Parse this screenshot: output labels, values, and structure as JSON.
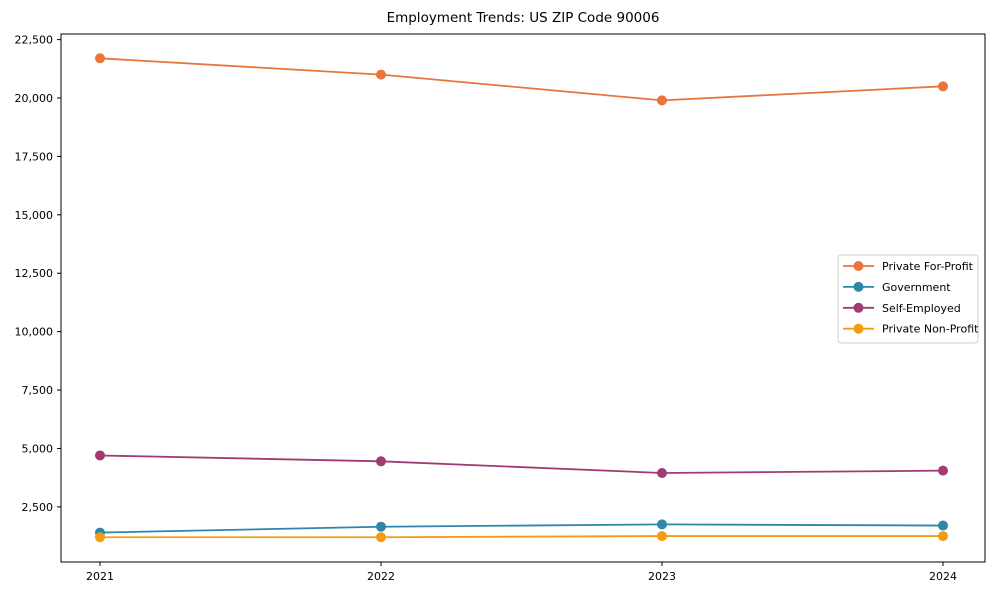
{
  "figure": {
    "background": "#ffffff"
  },
  "chart_data": {
    "type": "line",
    "title": "Employment Trends: US ZIP Code 90006",
    "categories": [
      "2021",
      "2022",
      "2023",
      "2024"
    ],
    "series": [
      {
        "name": "Private For-Profit",
        "color": "#E8763C",
        "values": [
          21700,
          21000,
          19900,
          20500
        ]
      },
      {
        "name": "Government",
        "color": "#2E86AB",
        "values": [
          1400,
          1650,
          1750,
          1700
        ]
      },
      {
        "name": "Self-Employed",
        "color": "#A23B72",
        "values": [
          4700,
          4450,
          3950,
          4050
        ]
      },
      {
        "name": "Private Non-Profit",
        "color": "#F39C12",
        "values": [
          1200,
          1200,
          1250,
          1250
        ]
      }
    ],
    "xlabel": "",
    "ylabel": "",
    "ylim": [
      140,
      22740
    ],
    "yticks": [
      2500,
      5000,
      7500,
      10000,
      12500,
      15000,
      17500,
      20000,
      22500
    ],
    "grid": false,
    "marker": "circle",
    "legend_position": "center-right",
    "axis_color": "#000000",
    "legend_border_color": "#cccccc"
  }
}
